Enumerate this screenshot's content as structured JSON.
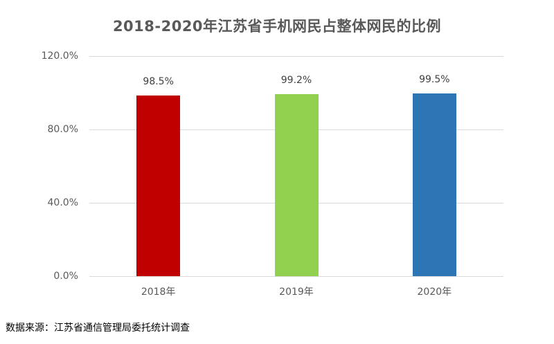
{
  "chart_data": {
    "type": "bar",
    "title": "2018-2020年江苏省手机网民占整体网民的比例",
    "categories": [
      "2018年",
      "2019年",
      "2020年"
    ],
    "values": [
      98.5,
      99.2,
      99.5
    ],
    "value_labels": [
      "98.5%",
      "99.2%",
      "99.5%"
    ],
    "colors": [
      "#c00000",
      "#92d050",
      "#2e75b6"
    ],
    "xlabel": "",
    "ylabel": "",
    "ylim": [
      0,
      120
    ],
    "yticks": [
      0,
      40,
      80,
      120
    ],
    "ytick_labels": [
      "0.0%",
      "40.0%",
      "80.0%",
      "120.0%"
    ],
    "grid": true,
    "legend": "none"
  },
  "source": "数据来源：江苏省通信管理局委托统计调查"
}
